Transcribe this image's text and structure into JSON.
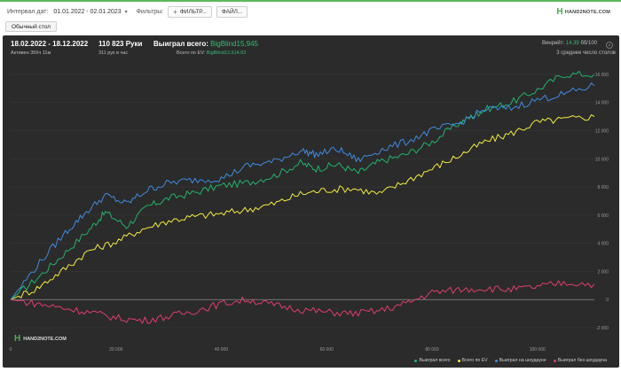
{
  "toolbar": {
    "interval_label": "Интервал дат:",
    "interval_value": "01.01.2022 - 02.01.2023",
    "filters_label": "Фильтры:",
    "filter_button": "ФИЛЬТР...",
    "file_button": "ФАЙЛ..."
  },
  "brand": {
    "logo_text": "HAND2NOTE.COM"
  },
  "tabs": [
    {
      "label": "Обычный стол"
    }
  ],
  "summary": {
    "date_range": "18.02.2022 - 18.12.2022",
    "active": "Активен 356ч 11м",
    "hands": "110 823 Руки",
    "hands_per_hour": "311 рук в час",
    "won_total_label": "Выиграл всего:",
    "won_total_value": "BigBlind15,945",
    "ev_label": "Всего по EV:",
    "ev_value": "BigBlind12,914.63",
    "winrate_label": "Винрейт:",
    "winrate_value": "14.39",
    "winrate_unit": "бб/100",
    "tables": "3 среднее число столов"
  },
  "colors": {
    "panel_bg": "#2b2b2b",
    "won_total": "#21b36b",
    "all_ev": "#f2ec3c",
    "won_showdown": "#3f8ae0",
    "won_no_showdown": "#e03d6b",
    "accent_green": "#2fbf71"
  },
  "chart_data": {
    "type": "line",
    "x_range": [
      0,
      110823
    ],
    "ylim": [
      -2000,
      16500
    ],
    "y_ticks": [
      "16 000",
      "14 000",
      "12 000",
      "10 000",
      "8 000",
      "6 000",
      "4 000",
      "2 000",
      "0",
      "-2 000"
    ],
    "x_ticks": [
      "0",
      "20 000",
      "40 000",
      "60 000",
      "80 000",
      "100 000"
    ],
    "legend_position": "bottom-right",
    "series": [
      {
        "name": "Выиграл всего",
        "color": "#21b36b",
        "points": [
          [
            0,
            0
          ],
          [
            5000,
            1500
          ],
          [
            10000,
            3200
          ],
          [
            15000,
            5000
          ],
          [
            18000,
            6200
          ],
          [
            22000,
            5200
          ],
          [
            26000,
            6600
          ],
          [
            30000,
            7200
          ],
          [
            35000,
            7600
          ],
          [
            40000,
            8100
          ],
          [
            45000,
            8300
          ],
          [
            50000,
            8800
          ],
          [
            55000,
            9700
          ],
          [
            58000,
            9300
          ],
          [
            62000,
            9600
          ],
          [
            66000,
            9000
          ],
          [
            70000,
            9800
          ],
          [
            75000,
            10300
          ],
          [
            80000,
            11200
          ],
          [
            85000,
            12500
          ],
          [
            88000,
            13100
          ],
          [
            90000,
            13500
          ],
          [
            95000,
            14000
          ],
          [
            100000,
            14900
          ],
          [
            105000,
            16000
          ],
          [
            110823,
            16000
          ]
        ]
      },
      {
        "name": "Всего по EV",
        "color": "#f2ec3c",
        "points": [
          [
            0,
            0
          ],
          [
            5000,
            800
          ],
          [
            10000,
            2100
          ],
          [
            15000,
            3500
          ],
          [
            20000,
            4100
          ],
          [
            25000,
            5000
          ],
          [
            30000,
            5600
          ],
          [
            35000,
            5900
          ],
          [
            40000,
            6100
          ],
          [
            45000,
            6400
          ],
          [
            50000,
            6800
          ],
          [
            55000,
            7500
          ],
          [
            60000,
            7800
          ],
          [
            65000,
            7900
          ],
          [
            70000,
            7500
          ],
          [
            75000,
            8400
          ],
          [
            80000,
            9300
          ],
          [
            85000,
            10200
          ],
          [
            90000,
            11200
          ],
          [
            95000,
            11800
          ],
          [
            100000,
            12600
          ],
          [
            105000,
            12800
          ],
          [
            110823,
            13000
          ]
        ]
      },
      {
        "name": "Выиграл на шоудауне",
        "color": "#3f8ae0",
        "points": [
          [
            0,
            0
          ],
          [
            5000,
            2400
          ],
          [
            10000,
            4600
          ],
          [
            14000,
            6100
          ],
          [
            18000,
            7400
          ],
          [
            22000,
            6800
          ],
          [
            26000,
            7800
          ],
          [
            30000,
            8300
          ],
          [
            35000,
            8500
          ],
          [
            40000,
            8600
          ],
          [
            45000,
            9500
          ],
          [
            50000,
            9800
          ],
          [
            55000,
            10600
          ],
          [
            58000,
            10300
          ],
          [
            62000,
            10700
          ],
          [
            66000,
            9900
          ],
          [
            70000,
            10600
          ],
          [
            75000,
            11200
          ],
          [
            80000,
            12000
          ],
          [
            85000,
            12500
          ],
          [
            90000,
            13500
          ],
          [
            95000,
            13600
          ],
          [
            100000,
            14200
          ],
          [
            105000,
            14600
          ],
          [
            110823,
            15200
          ]
        ]
      },
      {
        "name": "Выиграл без шоудауна",
        "color": "#e03d6b",
        "points": [
          [
            0,
            0
          ],
          [
            5000,
            -300
          ],
          [
            10000,
            -600
          ],
          [
            15000,
            -900
          ],
          [
            20000,
            -1300
          ],
          [
            25000,
            -1500
          ],
          [
            30000,
            -1200
          ],
          [
            35000,
            -800
          ],
          [
            40000,
            -300
          ],
          [
            45000,
            0
          ],
          [
            50000,
            -400
          ],
          [
            55000,
            -700
          ],
          [
            60000,
            -900
          ],
          [
            65000,
            -1000
          ],
          [
            70000,
            -800
          ],
          [
            75000,
            -300
          ],
          [
            80000,
            500
          ],
          [
            85000,
            700
          ],
          [
            90000,
            800
          ],
          [
            95000,
            700
          ],
          [
            100000,
            900
          ],
          [
            105000,
            1200
          ],
          [
            110823,
            1100
          ]
        ]
      }
    ]
  }
}
